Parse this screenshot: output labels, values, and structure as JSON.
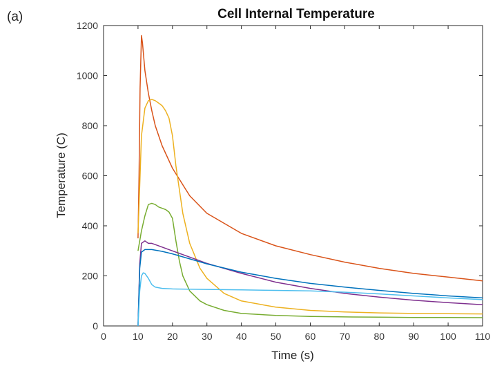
{
  "panel_label": "(a)",
  "chart_data": {
    "type": "line",
    "title": "Cell Internal Temperature",
    "xlabel": "Time (s)",
    "ylabel": "Temperature (C)",
    "xlim": [
      0,
      110
    ],
    "ylim": [
      0,
      1200
    ],
    "xticks": [
      0,
      10,
      20,
      30,
      40,
      50,
      60,
      70,
      80,
      90,
      100,
      110
    ],
    "yticks": [
      0,
      200,
      400,
      600,
      800,
      1000,
      1200
    ],
    "grid": false,
    "legend": "none",
    "series": [
      {
        "color": "#D95319",
        "x": [
          10,
          10.3,
          10.6,
          11,
          11.3,
          12,
          13,
          14,
          15,
          17,
          20,
          25,
          30,
          40,
          50,
          60,
          70,
          80,
          90,
          100,
          110
        ],
        "y": [
          350,
          600,
          950,
          1160,
          1130,
          1020,
          930,
          860,
          800,
          720,
          630,
          520,
          450,
          370,
          320,
          285,
          255,
          230,
          210,
          195,
          180
        ]
      },
      {
        "color": "#EDB120",
        "x": [
          10,
          10.5,
          11,
          12,
          13,
          14,
          15,
          16,
          17,
          18,
          19,
          20,
          21,
          23,
          25,
          28,
          30,
          35,
          40,
          50,
          60,
          70,
          80,
          90,
          100,
          110
        ],
        "y": [
          370,
          560,
          760,
          870,
          900,
          905,
          900,
          890,
          880,
          860,
          830,
          760,
          640,
          450,
          330,
          230,
          190,
          130,
          100,
          75,
          62,
          56,
          52,
          50,
          49,
          48
        ]
      },
      {
        "color": "#77AC30",
        "x": [
          10,
          10.5,
          11,
          12,
          13,
          14,
          15,
          16,
          17,
          18,
          19,
          20,
          21,
          22,
          23,
          25,
          28,
          30,
          35,
          40,
          50,
          60,
          70,
          80,
          90,
          100,
          110
        ],
        "y": [
          300,
          340,
          380,
          440,
          485,
          490,
          485,
          475,
          470,
          465,
          455,
          430,
          340,
          260,
          200,
          140,
          100,
          85,
          62,
          50,
          42,
          38,
          36,
          35,
          34,
          34,
          33
        ]
      },
      {
        "color": "#7E2F8E",
        "x": [
          10,
          10.5,
          11,
          12,
          13,
          14,
          15,
          17,
          20,
          25,
          30,
          40,
          50,
          60,
          70,
          80,
          90,
          100,
          110
        ],
        "y": [
          0,
          250,
          330,
          340,
          330,
          330,
          325,
          315,
          300,
          275,
          250,
          210,
          175,
          150,
          130,
          115,
          103,
          93,
          85
        ]
      },
      {
        "color": "#0072BD",
        "x": [
          10,
          10.5,
          11,
          12,
          13,
          14,
          15,
          17,
          20,
          25,
          30,
          40,
          50,
          60,
          70,
          80,
          90,
          100,
          110
        ],
        "y": [
          0,
          230,
          295,
          305,
          305,
          305,
          303,
          298,
          288,
          268,
          248,
          215,
          190,
          170,
          155,
          142,
          130,
          120,
          112
        ]
      },
      {
        "color": "#4DBEEE",
        "x": [
          10,
          10.5,
          11,
          11.5,
          12,
          13,
          14,
          15,
          17,
          20,
          30,
          40,
          50,
          60,
          70,
          80,
          90,
          100,
          110
        ],
        "y": [
          0,
          140,
          200,
          212,
          210,
          190,
          165,
          155,
          150,
          148,
          146,
          144,
          142,
          140,
          135,
          128,
          120,
          112,
          105
        ]
      }
    ]
  }
}
